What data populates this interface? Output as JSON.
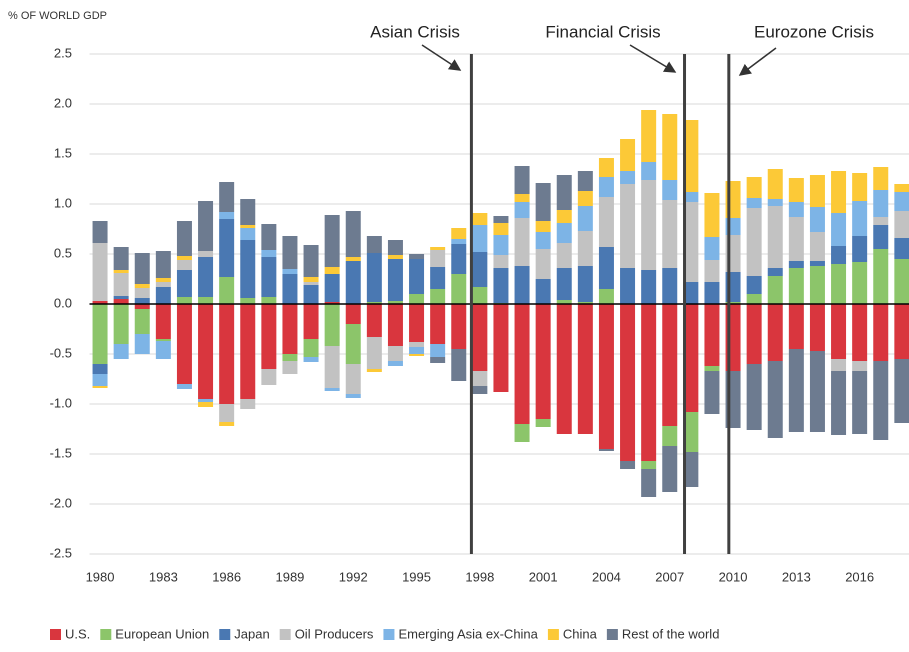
{
  "chart_data": {
    "type": "stacked-bar",
    "y_axis_label": "% OF WORLD GDP",
    "categories": [
      "1980",
      null,
      null,
      "1983",
      null,
      null,
      "1986",
      null,
      null,
      "1989",
      null,
      null,
      "1992",
      null,
      null,
      "1995",
      null,
      null,
      "1998",
      null,
      null,
      "2001",
      null,
      null,
      "2004",
      null,
      null,
      "2007",
      null,
      null,
      "2010",
      null,
      null,
      "2013",
      null,
      null,
      "2016",
      null,
      null
    ],
    "ylim": [
      -2.5,
      2.5
    ],
    "yticks": [
      2.5,
      {
        "value": 2,
        "label": "2.0"
      },
      1.5,
      {
        "value": 1,
        "label": "1.0"
      },
      0.5,
      {
        "value": 0,
        "label": "0.0"
      },
      -0.5,
      {
        "value": -1,
        "label": "-1.0"
      },
      -1.5,
      {
        "value": -2,
        "label": "-2.0"
      },
      -2.5
    ],
    "grid": true,
    "legend": "bottom",
    "series": [
      {
        "name": "U.S.",
        "color": "#d9363e",
        "values": [
          0.03,
          0.05,
          -0.05,
          -0.35,
          -0.8,
          -0.95,
          -1.0,
          -0.95,
          -0.65,
          -0.5,
          -0.35,
          0.02,
          -0.2,
          -0.33,
          -0.42,
          -0.38,
          -0.4,
          -0.45,
          -0.67,
          -0.88,
          -1.2,
          -1.15,
          -1.3,
          -1.3,
          -1.45,
          -1.57,
          -1.57,
          -1.22,
          -1.08,
          -0.62,
          -0.67,
          -0.6,
          -0.57,
          -0.45,
          -0.47,
          -0.55,
          -0.57,
          -0.57,
          -0.55
        ]
      },
      {
        "name": "European Union",
        "color": "#8cc56a",
        "values": [
          -0.6,
          -0.4,
          -0.25,
          -0.02,
          0.07,
          0.07,
          0.27,
          0.06,
          0.07,
          -0.07,
          -0.18,
          -0.42,
          -0.4,
          0.02,
          0.03,
          0.1,
          0.15,
          0.3,
          0.17,
          0.01,
          -0.18,
          -0.08,
          0.04,
          0.02,
          0.15,
          0,
          -0.08,
          -0.2,
          -0.4,
          -0.05,
          0.02,
          0.1,
          0.28,
          0.36,
          0.38,
          0.4,
          0.42,
          0.55,
          0.45
        ]
      },
      {
        "name": "Japan",
        "color": "#4a78b2",
        "values": [
          -0.1,
          0.03,
          0.06,
          0.17,
          0.27,
          0.4,
          0.58,
          0.58,
          0.4,
          0.3,
          0.19,
          0.28,
          0.43,
          0.49,
          0.42,
          0.35,
          0.22,
          0.3,
          0.35,
          0.35,
          0.38,
          0.25,
          0.32,
          0.36,
          0.42,
          0.36,
          0.34,
          0.36,
          0.22,
          0.22,
          0.3,
          0.18,
          0.08,
          0.07,
          0.05,
          0.18,
          0.26,
          0.24,
          0.21
        ]
      },
      {
        "name": "Oil Producers",
        "color": "#c2c2c2",
        "values": [
          0.58,
          0.23,
          0.1,
          0.05,
          0.1,
          0.06,
          -0.18,
          -0.1,
          -0.16,
          -0.13,
          0.03,
          -0.42,
          -0.3,
          -0.32,
          -0.15,
          -0.05,
          0.17,
          0,
          -0.15,
          0.13,
          0.48,
          0.3,
          0.25,
          0.35,
          0.5,
          0.84,
          0.9,
          0.68,
          0.8,
          0.22,
          0.37,
          0.68,
          0.62,
          0.44,
          0.29,
          -0.12,
          -0.1,
          0.08,
          0.27
        ]
      },
      {
        "name": "Emerging Asia ex-China",
        "color": "#7db4e6",
        "values": [
          -0.12,
          -0.15,
          -0.2,
          -0.18,
          -0.05,
          -0.03,
          0.07,
          0.12,
          0.07,
          0.05,
          -0.05,
          -0.03,
          -0.04,
          0,
          -0.05,
          -0.07,
          -0.13,
          0.05,
          0.27,
          0.2,
          0.16,
          0.17,
          0.2,
          0.25,
          0.2,
          0.13,
          0.18,
          0.2,
          0.1,
          0.23,
          0.17,
          0.1,
          0.07,
          0.15,
          0.25,
          0.33,
          0.35,
          0.27,
          0.19
        ]
      },
      {
        "name": "China",
        "color": "#fcc937",
        "values": [
          -0.02,
          0.03,
          0.04,
          0.04,
          0.04,
          -0.05,
          -0.04,
          0.03,
          0,
          0,
          0.05,
          0.07,
          0.04,
          -0.03,
          0.04,
          -0.02,
          0.03,
          0.11,
          0.12,
          0.12,
          0.08,
          0.11,
          0.13,
          0.15,
          0.19,
          0.32,
          0.52,
          0.66,
          0.72,
          0.44,
          0.37,
          0.21,
          0.3,
          0.24,
          0.32,
          0.42,
          0.28,
          0.23,
          0.08
        ]
      },
      {
        "name": "Rest of the world",
        "color": "#6d7b90",
        "values": [
          0.22,
          0.23,
          0.31,
          0.27,
          0.35,
          0.5,
          0.3,
          0.26,
          0.26,
          0.33,
          0.32,
          0.52,
          0.46,
          0.17,
          0.15,
          0.05,
          -0.06,
          -0.32,
          -0.08,
          0.07,
          0.28,
          0.38,
          0.35,
          0.2,
          -0.02,
          -0.08,
          -0.28,
          -0.46,
          -0.35,
          -0.43,
          -0.57,
          -0.66,
          -0.77,
          -0.83,
          -0.81,
          -0.64,
          -0.63,
          -0.79,
          -0.64
        ]
      }
    ],
    "annotations": [
      {
        "label": "Asian Crisis",
        "x": 1997.6
      },
      {
        "label": "Financial Crisis",
        "x": 2007.7
      },
      {
        "label": "Eurozone Crisis",
        "x": 2009.8
      }
    ]
  }
}
